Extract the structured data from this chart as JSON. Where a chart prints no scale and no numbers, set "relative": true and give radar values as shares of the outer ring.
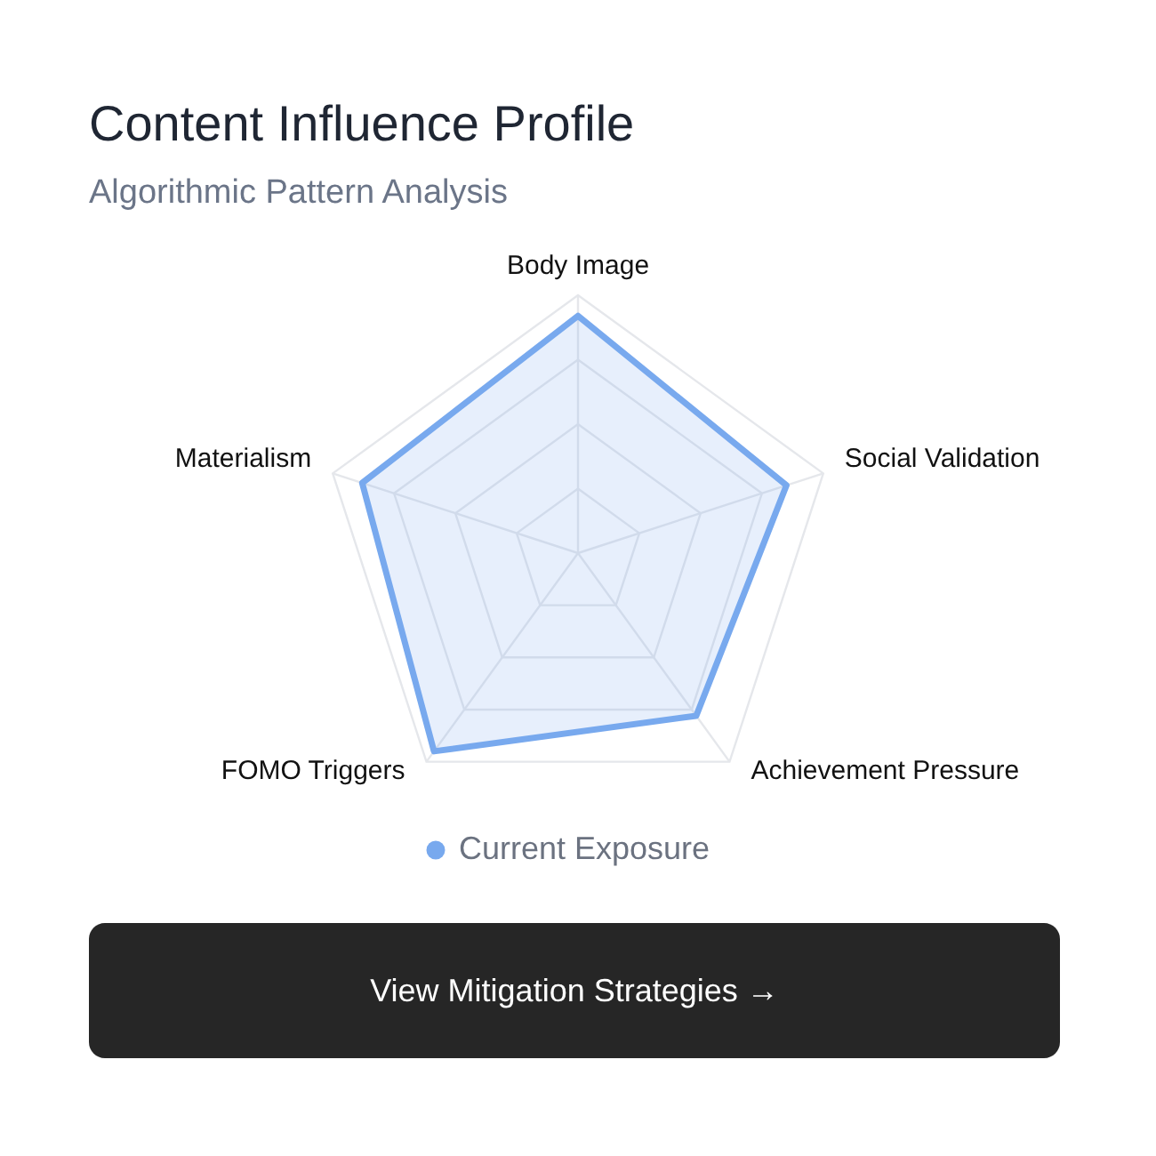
{
  "chart_data": {
    "type": "radar",
    "title": "Content Influence Profile",
    "subtitle": "Algorithmic Pattern Analysis",
    "categories": [
      "Body Image",
      "Social Validation",
      "Achievement Pressure",
      "FOMO Triggers",
      "Materialism"
    ],
    "relative": true,
    "series": [
      {
        "name": "Current Exposure",
        "color": "#78a9ee",
        "values": [
          0.92,
          0.85,
          0.78,
          0.95,
          0.88
        ]
      }
    ],
    "grid": true,
    "legend": "bottom",
    "annotations": [
      "View Mitigation Strategies →"
    ]
  }
}
